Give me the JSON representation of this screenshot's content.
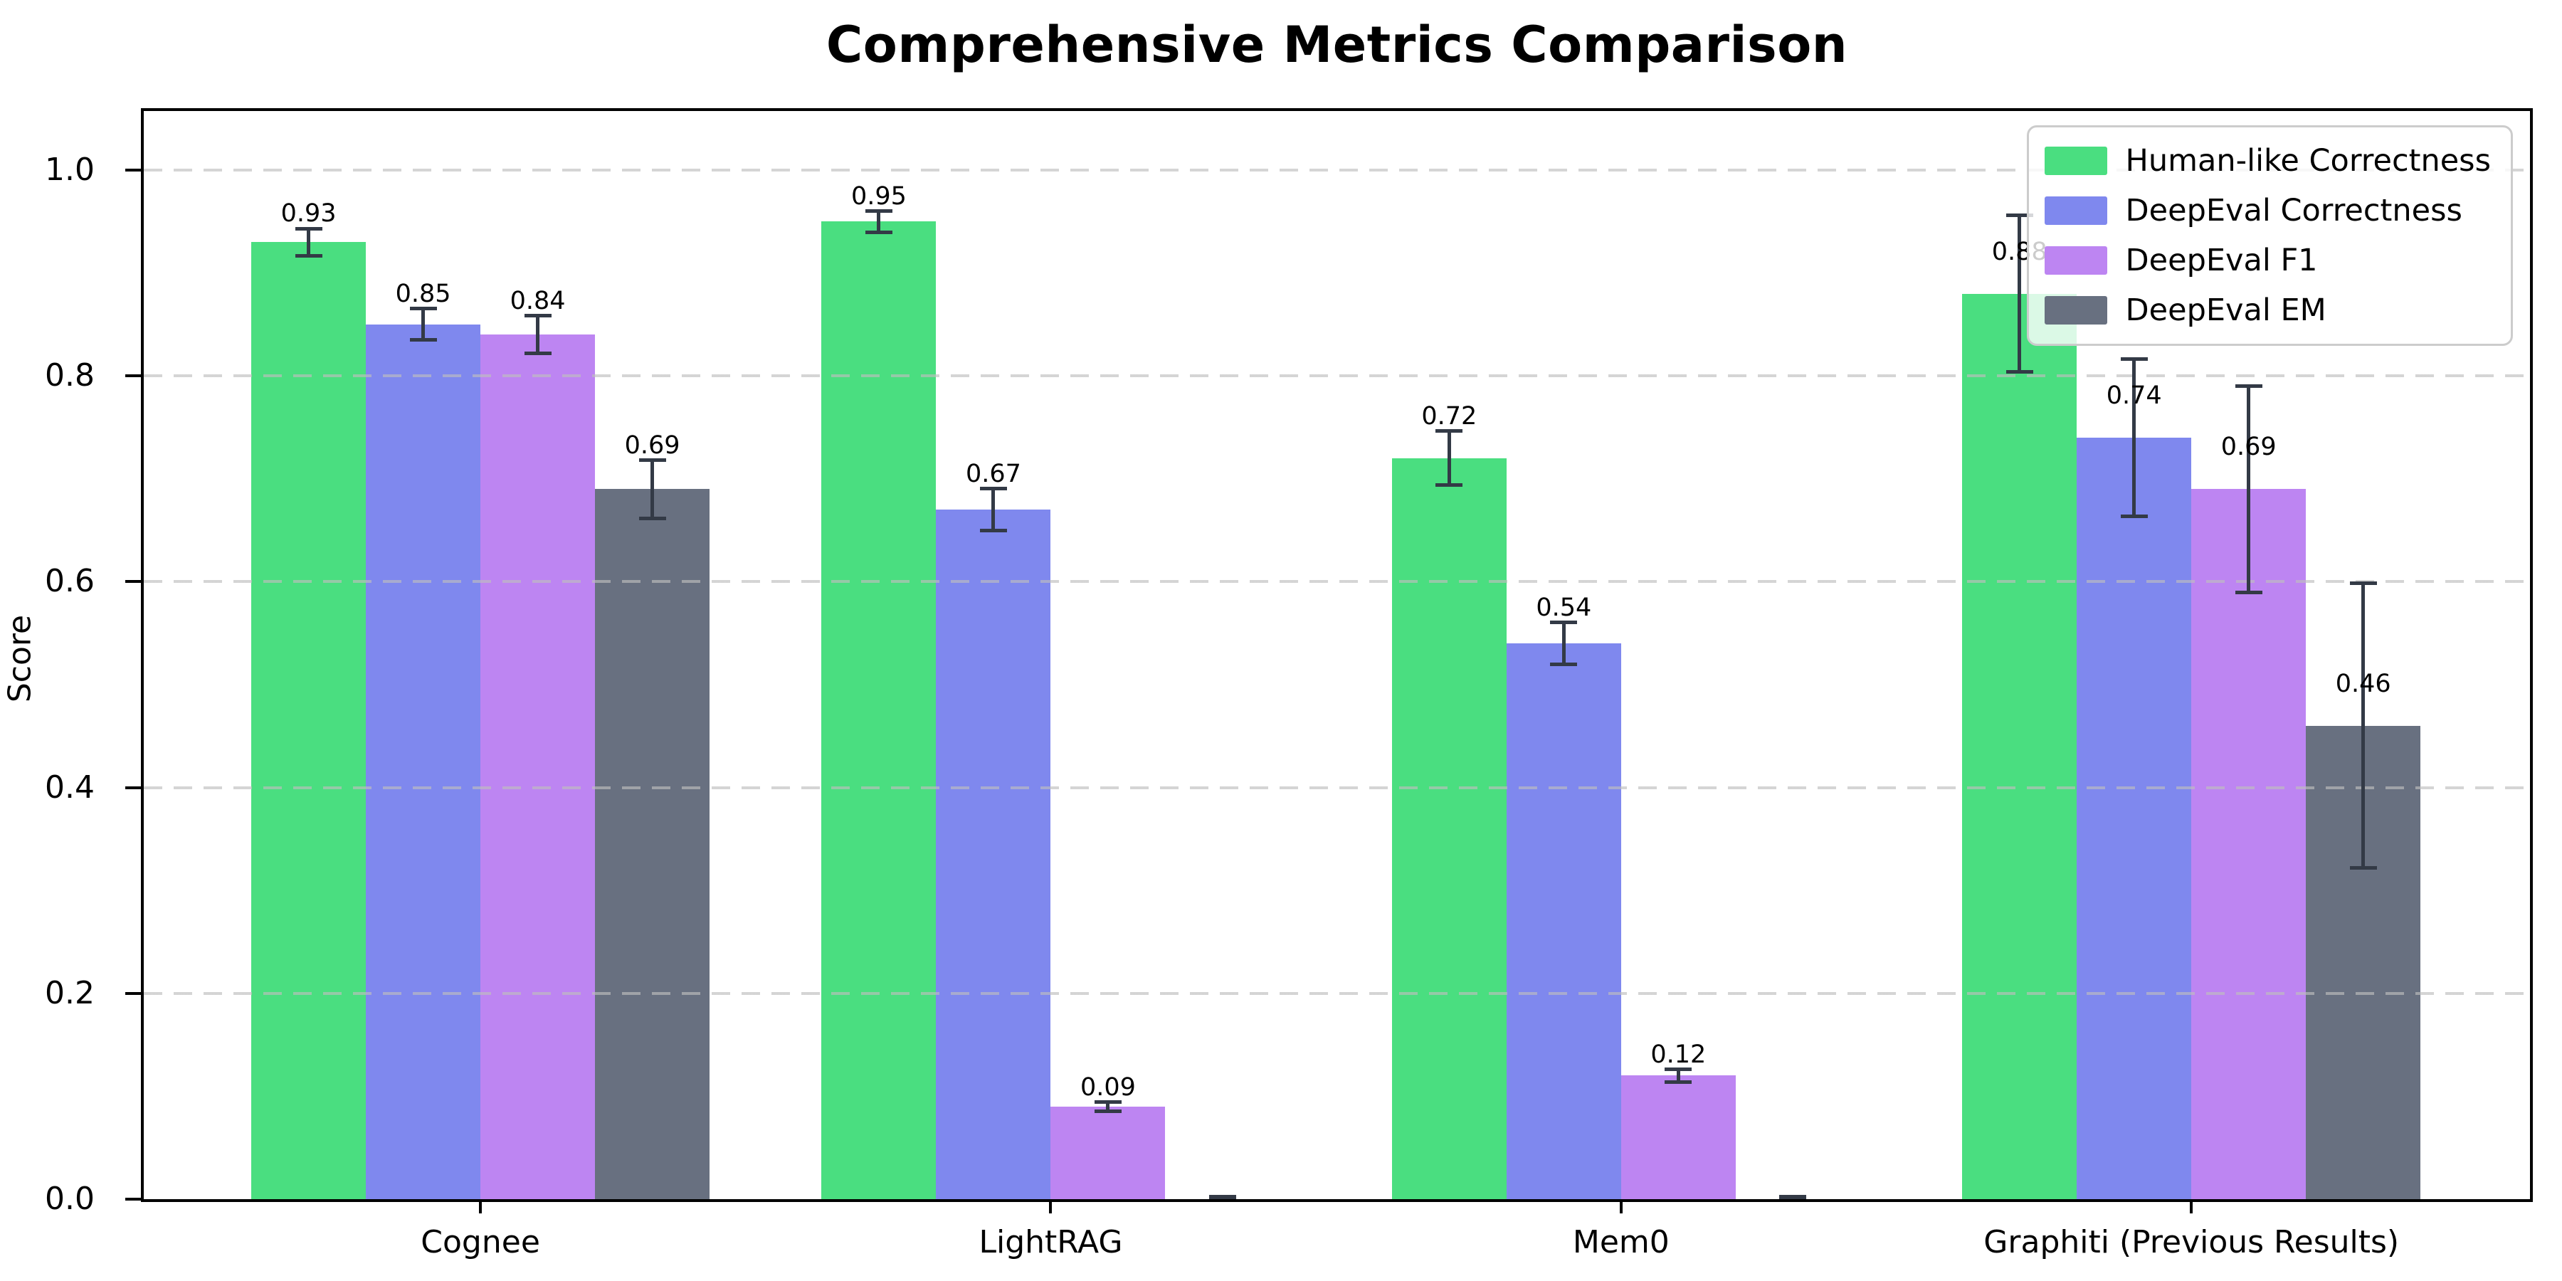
{
  "chart_data": {
    "type": "bar",
    "title": "Comprehensive Metrics Comparison",
    "xlabel": "",
    "ylabel": "Score",
    "ylim": [
      0,
      1.05
    ],
    "grid": "horizontal dashed",
    "legend_position": "upper right",
    "categories": [
      "Cognee",
      "LightRAG",
      "Mem0",
      "Graphiti (Previous Results)"
    ],
    "yticks": [
      "0.0",
      "0.2",
      "0.4",
      "0.6",
      "0.8",
      "1.0"
    ],
    "error_bar_color": "#333a46",
    "series": [
      {
        "name": "Human-like Correctness",
        "color": "#4ade80",
        "values": [
          0.93,
          0.95,
          0.72,
          0.88
        ],
        "errors": [
          0.015,
          0.012,
          0.028,
          0.078
        ],
        "labels": [
          "0.93",
          "0.95",
          "0.72",
          "0.88"
        ]
      },
      {
        "name": "DeepEval Correctness",
        "color": "#7f88ee",
        "values": [
          0.85,
          0.67,
          0.54,
          0.74
        ],
        "errors": [
          0.017,
          0.022,
          0.022,
          0.078
        ],
        "labels": [
          "0.85",
          "0.67",
          "0.54",
          "0.74"
        ]
      },
      {
        "name": "DeepEval F1",
        "color": "#bd85f2",
        "values": [
          0.84,
          0.09,
          0.12,
          0.69
        ],
        "errors": [
          0.02,
          0.006,
          0.008,
          0.102
        ],
        "labels": [
          "0.84",
          "0.09",
          "0.12",
          "0.69"
        ]
      },
      {
        "name": "DeepEval EM",
        "color": "#687080",
        "values": [
          0.69,
          0.0,
          0.0,
          0.46
        ],
        "errors": [
          0.03,
          0.004,
          0.004,
          0.14
        ],
        "labels": [
          "0.69",
          "",
          "",
          "0.46"
        ]
      }
    ]
  }
}
